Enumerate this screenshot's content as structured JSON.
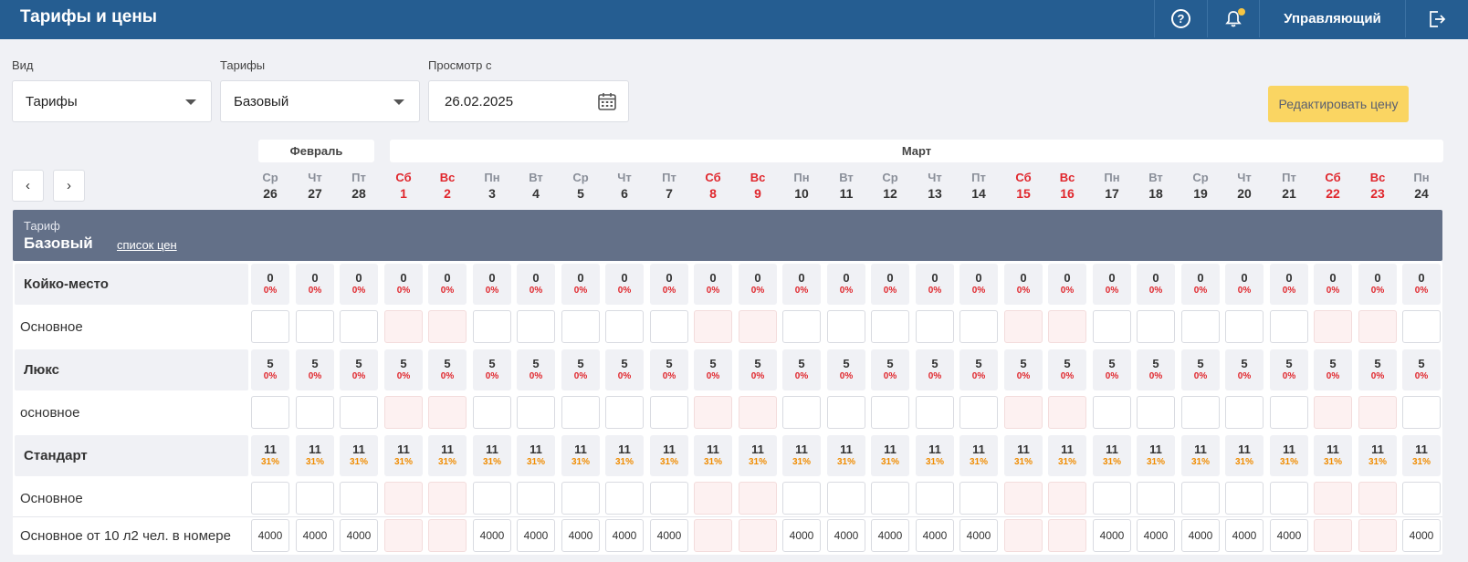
{
  "app": {
    "title": "Тарифы и цены"
  },
  "header": {
    "help_glyph": "?",
    "user": "Управляющий",
    "icons": [
      "help-icon",
      "bell-icon",
      "logout-icon"
    ],
    "notification_color": "#f6c543"
  },
  "filters": {
    "view": {
      "label": "Вид",
      "value": "Тарифы"
    },
    "tariffs": {
      "label": "Тарифы",
      "value": "Базовый"
    },
    "from": {
      "label": "Просмотр с",
      "value": "26.02.2025"
    }
  },
  "edit_button": "Редактировать цену",
  "nav": {
    "prev": "‹",
    "next": "›"
  },
  "months": [
    "Февраль",
    "Март"
  ],
  "days": [
    {
      "wd": "Ср",
      "d": "26",
      "we": false
    },
    {
      "wd": "Чт",
      "d": "27",
      "we": false
    },
    {
      "wd": "Пт",
      "d": "28",
      "we": false
    },
    {
      "wd": "Сб",
      "d": "1",
      "we": true
    },
    {
      "wd": "Вс",
      "d": "2",
      "we": true
    },
    {
      "wd": "Пн",
      "d": "3",
      "we": false
    },
    {
      "wd": "Вт",
      "d": "4",
      "we": false
    },
    {
      "wd": "Ср",
      "d": "5",
      "we": false
    },
    {
      "wd": "Чт",
      "d": "6",
      "we": false
    },
    {
      "wd": "Пт",
      "d": "7",
      "we": false
    },
    {
      "wd": "Сб",
      "d": "8",
      "we": true
    },
    {
      "wd": "Вс",
      "d": "9",
      "we": true
    },
    {
      "wd": "Пн",
      "d": "10",
      "we": false
    },
    {
      "wd": "Вт",
      "d": "11",
      "we": false
    },
    {
      "wd": "Ср",
      "d": "12",
      "we": false
    },
    {
      "wd": "Чт",
      "d": "13",
      "we": false
    },
    {
      "wd": "Пт",
      "d": "14",
      "we": false
    },
    {
      "wd": "Сб",
      "d": "15",
      "we": true
    },
    {
      "wd": "Вс",
      "d": "16",
      "we": true
    },
    {
      "wd": "Пн",
      "d": "17",
      "we": false
    },
    {
      "wd": "Вт",
      "d": "18",
      "we": false
    },
    {
      "wd": "Ср",
      "d": "19",
      "we": false
    },
    {
      "wd": "Чт",
      "d": "20",
      "we": false
    },
    {
      "wd": "Пт",
      "d": "21",
      "we": false
    },
    {
      "wd": "Сб",
      "d": "22",
      "we": true
    },
    {
      "wd": "Вс",
      "d": "23",
      "we": true
    },
    {
      "wd": "Пн",
      "d": "24",
      "we": false
    }
  ],
  "tariff": {
    "label": "Тариф",
    "name": "Базовый",
    "link": "список цен"
  },
  "room_types": [
    {
      "name": "Койко-место",
      "available": "0",
      "occupancy": "0%",
      "occupancy_color": "red",
      "plans": [
        {
          "name": "Основное",
          "price": ""
        }
      ]
    },
    {
      "name": "Люкс",
      "available": "5",
      "occupancy": "0%",
      "occupancy_color": "red",
      "plans": [
        {
          "name": "основное",
          "price": ""
        }
      ]
    },
    {
      "name": "Стандарт",
      "available": "11",
      "occupancy": "31%",
      "occupancy_color": "orange",
      "plans": [
        {
          "name": "Основное",
          "price": ""
        },
        {
          "name": "Основное от 10 л2 чел. в номере",
          "price": "4000"
        }
      ]
    }
  ],
  "colors": {
    "topbar": "#255d91",
    "weekend": "#e0262c",
    "accent_button": "#fad562",
    "tariff_bar": "#637088"
  }
}
